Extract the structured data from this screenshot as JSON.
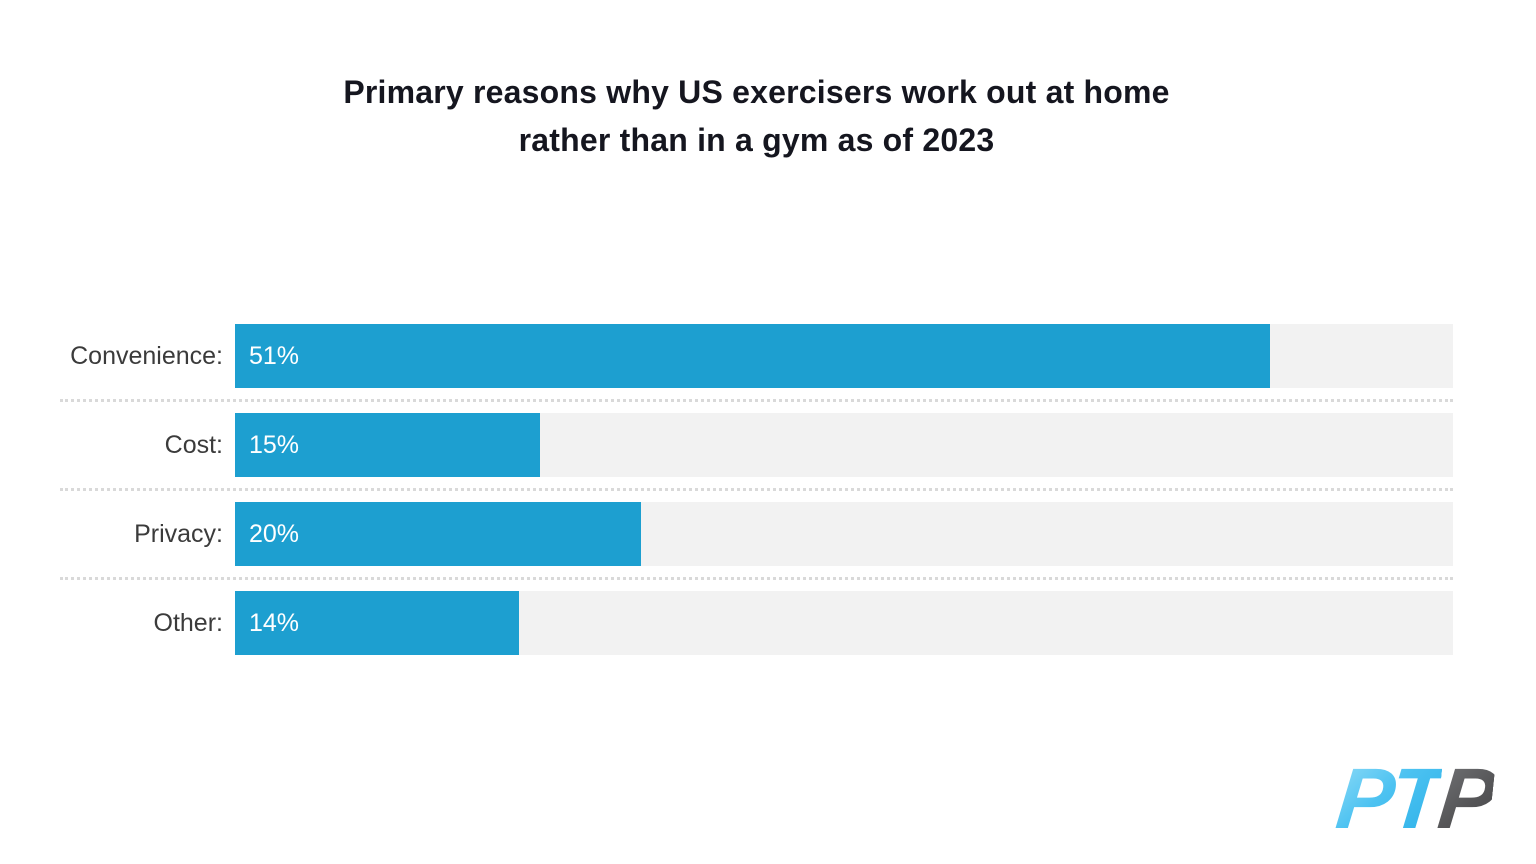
{
  "title": {
    "line1": "Primary reasons why US exercisers work out at home",
    "line2": "rather than in a gym as of 2023"
  },
  "chart_data": {
    "type": "bar",
    "orientation": "horizontal",
    "title": "Primary reasons why US exercisers work out at home rather than in a gym as of 2023",
    "categories": [
      "Convenience:",
      "Cost:",
      "Privacy:",
      "Other:"
    ],
    "values": [
      51,
      15,
      20,
      14
    ],
    "value_labels": [
      "51%",
      "15%",
      "20%",
      "14%"
    ],
    "unit": "%",
    "xlim": [
      0,
      60
    ],
    "grid": "dotted row separators, no axis ticks shown",
    "legend": "none",
    "bar_color": "#1d9fd0",
    "track_color": "#f2f2f2",
    "separator_color": "#d9d9d9",
    "label_color": "#3b3b3b",
    "value_text_color": "#ffffff",
    "title_color": "#15161f"
  },
  "logo": {
    "text_primary": "PT",
    "text_secondary": "P",
    "primary_color": "#4cc2f1",
    "secondary_color": "#565658"
  }
}
